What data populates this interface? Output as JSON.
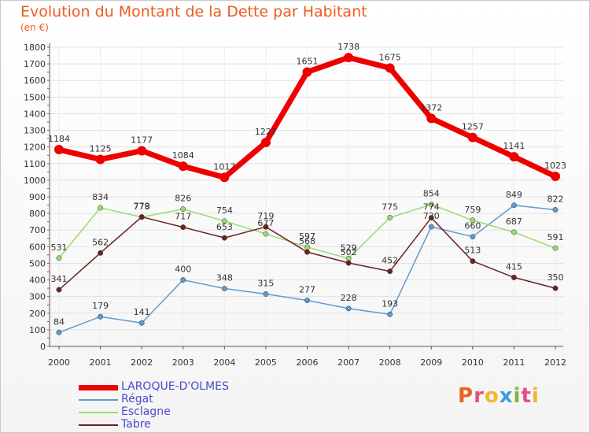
{
  "header": {
    "title": "Evolution du Montant de la Dette par Habitant",
    "subtitle": "(en €)"
  },
  "logo": {
    "text": "Proxiti",
    "colors": [
      "#e8651f",
      "#e94d8c",
      "#f2b82b",
      "#3a9fd8",
      "#7ab834",
      "#e94d8c",
      "#f2b82b"
    ]
  },
  "chart_data": {
    "type": "line",
    "title": "Evolution du Montant de la Dette par Habitant",
    "subtitle": "(en €)",
    "x": [
      "2000",
      "2001",
      "2002",
      "2003",
      "2004",
      "2005",
      "2006",
      "2007",
      "2008",
      "2009",
      "2010",
      "2011",
      "2012"
    ],
    "yticks": [
      0,
      100,
      200,
      300,
      400,
      500,
      600,
      700,
      800,
      900,
      1000,
      1100,
      1200,
      1300,
      1400,
      1500,
      1600,
      1700,
      1800
    ],
    "ylim": [
      0,
      1800
    ],
    "grid": true,
    "legend_position": "bottom-left",
    "series": [
      {
        "name": "LAROQUE-D'OLMES",
        "color": "#ee0000",
        "values": [
          1184,
          1125,
          1177,
          1084,
          1017,
          1227,
          1651,
          1738,
          1675,
          1372,
          1257,
          1141,
          1023
        ]
      },
      {
        "name": "Régat",
        "color": "#5f9bd0",
        "values": [
          84,
          179,
          141,
          400,
          348,
          315,
          277,
          228,
          193,
          720,
          660,
          849,
          822
        ]
      },
      {
        "name": "Esclagne",
        "color": "#98dc6e",
        "values": [
          531,
          834,
          778,
          826,
          754,
          677,
          597,
          529,
          775,
          854,
          759,
          687,
          591
        ]
      },
      {
        "name": "Tabre",
        "color": "#6b2222",
        "values": [
          341,
          562,
          779,
          717,
          653,
          719,
          568,
          502,
          452,
          774,
          513,
          415,
          350
        ]
      }
    ]
  }
}
